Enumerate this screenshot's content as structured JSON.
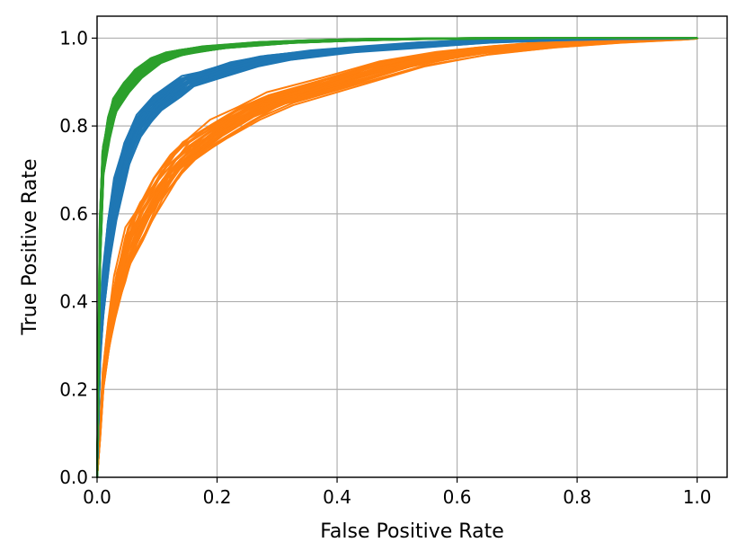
{
  "chart_data": {
    "type": "line",
    "xlabel": "False Positive Rate",
    "ylabel": "True Positive Rate",
    "xlim": [
      0.0,
      1.05
    ],
    "ylim": [
      0.0,
      1.05
    ],
    "xticks": [
      0.0,
      0.2,
      0.4,
      0.6,
      0.8,
      1.0
    ],
    "yticks": [
      0.0,
      0.2,
      0.4,
      0.6,
      0.8,
      1.0
    ],
    "xtick_labels": [
      "0.0",
      "0.2",
      "0.4",
      "0.6",
      "0.8",
      "1.0"
    ],
    "ytick_labels": [
      "0.0",
      "0.2",
      "0.4",
      "0.6",
      "0.8",
      "1.0"
    ],
    "grid": true,
    "legend": "none",
    "curves_per_series": 30,
    "series": [
      {
        "color": "#ff7f0e",
        "x": [
          0.0,
          0.005,
          0.01,
          0.02,
          0.03,
          0.05,
          0.07,
          0.1,
          0.13,
          0.15,
          0.2,
          0.25,
          0.3,
          0.4,
          0.5,
          0.6,
          0.7,
          0.8,
          0.9,
          0.95,
          1.0
        ],
        "y": [
          0.0,
          0.1,
          0.22,
          0.33,
          0.41,
          0.51,
          0.58,
          0.65,
          0.71,
          0.74,
          0.79,
          0.83,
          0.86,
          0.9,
          0.94,
          0.965,
          0.98,
          0.99,
          0.997,
          0.999,
          1.0
        ]
      },
      {
        "color": "#1f77b4",
        "x": [
          0.0,
          0.005,
          0.01,
          0.02,
          0.03,
          0.05,
          0.07,
          0.1,
          0.13,
          0.15,
          0.2,
          0.25,
          0.3,
          0.4,
          0.5,
          0.6,
          0.7,
          0.8,
          0.9,
          0.95,
          1.0
        ],
        "y": [
          0.0,
          0.3,
          0.42,
          0.55,
          0.63,
          0.74,
          0.8,
          0.85,
          0.88,
          0.9,
          0.92,
          0.94,
          0.955,
          0.97,
          0.98,
          0.99,
          0.995,
          0.998,
          0.999,
          1.0,
          1.0
        ]
      },
      {
        "color": "#2ca02c",
        "x": [
          0.0,
          0.005,
          0.01,
          0.02,
          0.03,
          0.05,
          0.07,
          0.1,
          0.13,
          0.15,
          0.2,
          0.25,
          0.3,
          0.4,
          0.5,
          0.6,
          0.7,
          0.8,
          0.9,
          0.95,
          1.0
        ],
        "y": [
          0.0,
          0.55,
          0.72,
          0.8,
          0.85,
          0.89,
          0.92,
          0.95,
          0.965,
          0.97,
          0.98,
          0.985,
          0.99,
          0.995,
          0.998,
          0.999,
          1.0,
          1.0,
          1.0,
          1.0,
          1.0
        ]
      }
    ]
  }
}
